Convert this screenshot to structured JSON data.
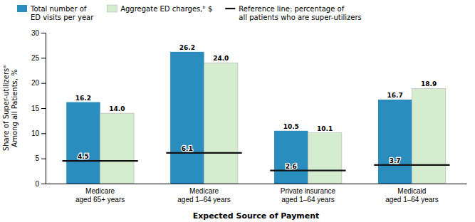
{
  "chart_data": {
    "type": "bar",
    "categories": [
      "Medicare\naged 65+ years",
      "Medicare\naged 1–64 years",
      "Private insurance\naged 1–64 years",
      "Medicaid\naged 1–64 years"
    ],
    "series": [
      {
        "name": "Total number of\nED visits per year",
        "color": "#2B8CBE",
        "values": [
          16.2,
          26.2,
          10.5,
          16.7
        ]
      },
      {
        "name": "Aggregate ED charges,ᵇ $",
        "color": "#D5EDCE",
        "values": [
          14.0,
          24.0,
          10.1,
          18.9
        ],
        "value_labels": [
          "14.0",
          "24.0",
          "10.1",
          "18.9"
        ]
      },
      {
        "name": "Reference line: percentage of\nall patients who are super-utilizers",
        "type": "reference",
        "color": "#111111",
        "values": [
          4.5,
          6.1,
          2.6,
          3.7
        ]
      }
    ],
    "ylabel": "Share of Super-utilizersᵃ\nAmong all Patients, %",
    "xlabel": "Expected Source of Payment",
    "ylim": [
      0,
      30
    ],
    "yticks": [
      0,
      5,
      10,
      15,
      20,
      25,
      30
    ],
    "data_labels": true,
    "legend": "upper left",
    "grid": false
  }
}
